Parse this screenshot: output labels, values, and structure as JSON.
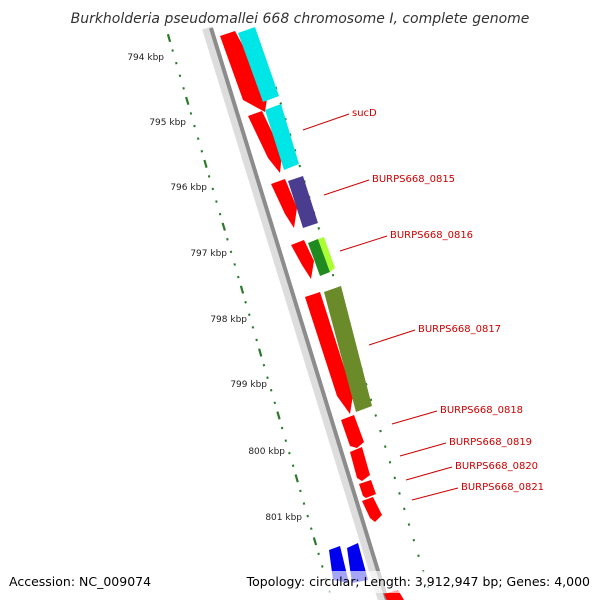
{
  "title": "Burkholderia pseudomallei 668 chromosome I, complete genome",
  "footer": {
    "accession": "Accession: NC_009074",
    "summary": "Topology: circular; Length: 3,912,947 bp; Genes: 4,000"
  },
  "scale_labels": [
    "794 kbp",
    "795 kbp",
    "796 kbp",
    "797 kbp",
    "798 kbp",
    "799 kbp",
    "800 kbp",
    "801 kbp"
  ],
  "gene_labels": [
    "sucD",
    "BURPS668_0815",
    "BURPS668_0816",
    "BURPS668_0817",
    "BURPS668_0818",
    "BURPS668_0819",
    "BURPS668_0820",
    "BURPS668_0821"
  ],
  "colors": {
    "backbone": "#8c8c8c",
    "cds": "#ff0000",
    "label": "#cc0000",
    "tick": "#2a7a2a",
    "cyan": "#00e5e5",
    "purple": "#4a3d8f",
    "lime": "#aaff33",
    "green": "#1f8a1f",
    "olive": "#6b8a2a",
    "blue": "#0000ee"
  }
}
